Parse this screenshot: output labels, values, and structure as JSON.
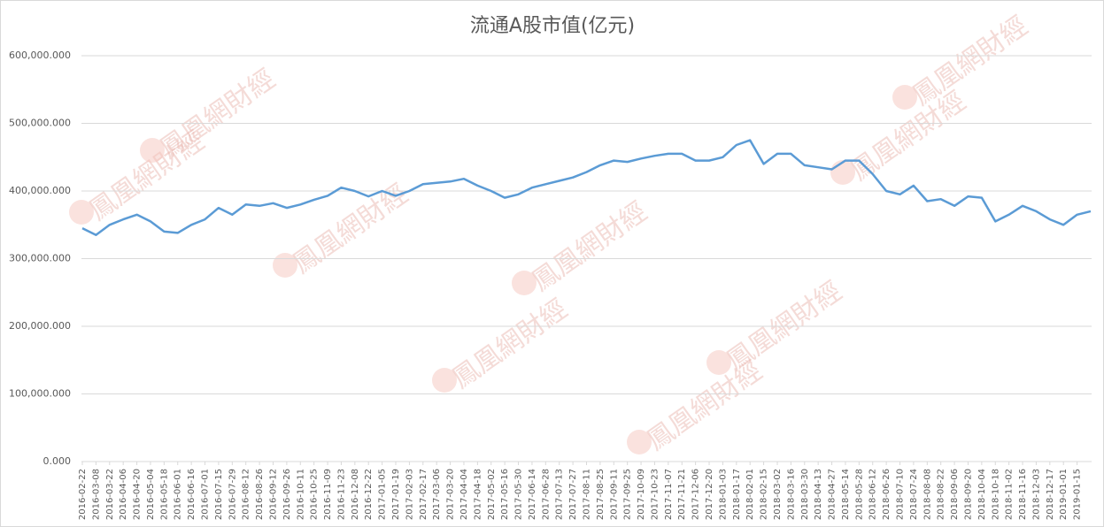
{
  "chart_data": {
    "type": "line",
    "title": "流通A股市值(亿元)",
    "watermark": "鳳凰網財經",
    "categories": [
      "2016-02-22",
      "2016-03-08",
      "2016-03-22",
      "2016-04-06",
      "2016-04-20",
      "2016-05-04",
      "2016-05-18",
      "2016-06-01",
      "2016-06-16",
      "2016-07-01",
      "2016-07-15",
      "2016-07-29",
      "2016-08-12",
      "2016-08-26",
      "2016-09-12",
      "2016-09-26",
      "2016-10-11",
      "2016-10-25",
      "2016-11-09",
      "2016-11-23",
      "2016-12-08",
      "2016-12-22",
      "2017-01-05",
      "2017-01-19",
      "2017-02-03",
      "2017-02-17",
      "2017-03-06",
      "2017-03-20",
      "2017-04-04",
      "2017-04-18",
      "2017-05-02",
      "2017-05-16",
      "2017-05-30",
      "2017-06-14",
      "2017-06-28",
      "2017-07-13",
      "2017-07-27",
      "2017-08-11",
      "2017-08-25",
      "2017-09-11",
      "2017-09-25",
      "2017-10-09",
      "2017-10-23",
      "2017-11-07",
      "2017-11-21",
      "2017-12-06",
      "2017-12-20",
      "2018-01-03",
      "2018-01-17",
      "2018-02-01",
      "2018-02-15",
      "2018-03-02",
      "2018-03-16",
      "2018-03-30",
      "2018-04-13",
      "2018-04-27",
      "2018-05-14",
      "2018-05-28",
      "2018-06-12",
      "2018-06-26",
      "2018-07-10",
      "2018-07-24",
      "2018-08-08",
      "2018-08-22",
      "2018-09-06",
      "2018-09-20",
      "2018-10-04",
      "2018-10-18",
      "2018-11-02",
      "2018-11-16",
      "2018-12-03",
      "2018-12-17",
      "2019-01-01",
      "2019-01-15",
      null
    ],
    "values": [
      345000,
      335000,
      350000,
      358000,
      365000,
      355000,
      340000,
      338000,
      350000,
      358000,
      375000,
      365000,
      380000,
      378000,
      382000,
      375000,
      380000,
      387000,
      393000,
      405000,
      400000,
      392000,
      400000,
      393000,
      400000,
      410000,
      412000,
      414000,
      418000,
      408000,
      400000,
      390000,
      395000,
      405000,
      410000,
      415000,
      420000,
      428000,
      438000,
      445000,
      443000,
      448000,
      452000,
      455000,
      455000,
      445000,
      445000,
      450000,
      468000,
      475000,
      440000,
      455000,
      455000,
      438000,
      435000,
      432000,
      445000,
      445000,
      425000,
      400000,
      395000,
      408000,
      385000,
      388000,
      378000,
      392000,
      390000,
      355000,
      365000,
      378000,
      370000,
      358000,
      350000,
      365000,
      370000
    ],
    "color": "#5b9bd5",
    "ylim": [
      0,
      600000
    ],
    "yticks": [
      {
        "value": 0,
        "label": "0.000"
      },
      {
        "value": 100000,
        "label": "100,000.000"
      },
      {
        "value": 200000,
        "label": "200,000.000"
      },
      {
        "value": 300000,
        "label": "300,000.000"
      },
      {
        "value": 400000,
        "label": "400,000.000"
      },
      {
        "value": 500000,
        "label": "500,000.000"
      },
      {
        "value": 600000,
        "label": "600,000.000"
      }
    ],
    "grid": true
  }
}
